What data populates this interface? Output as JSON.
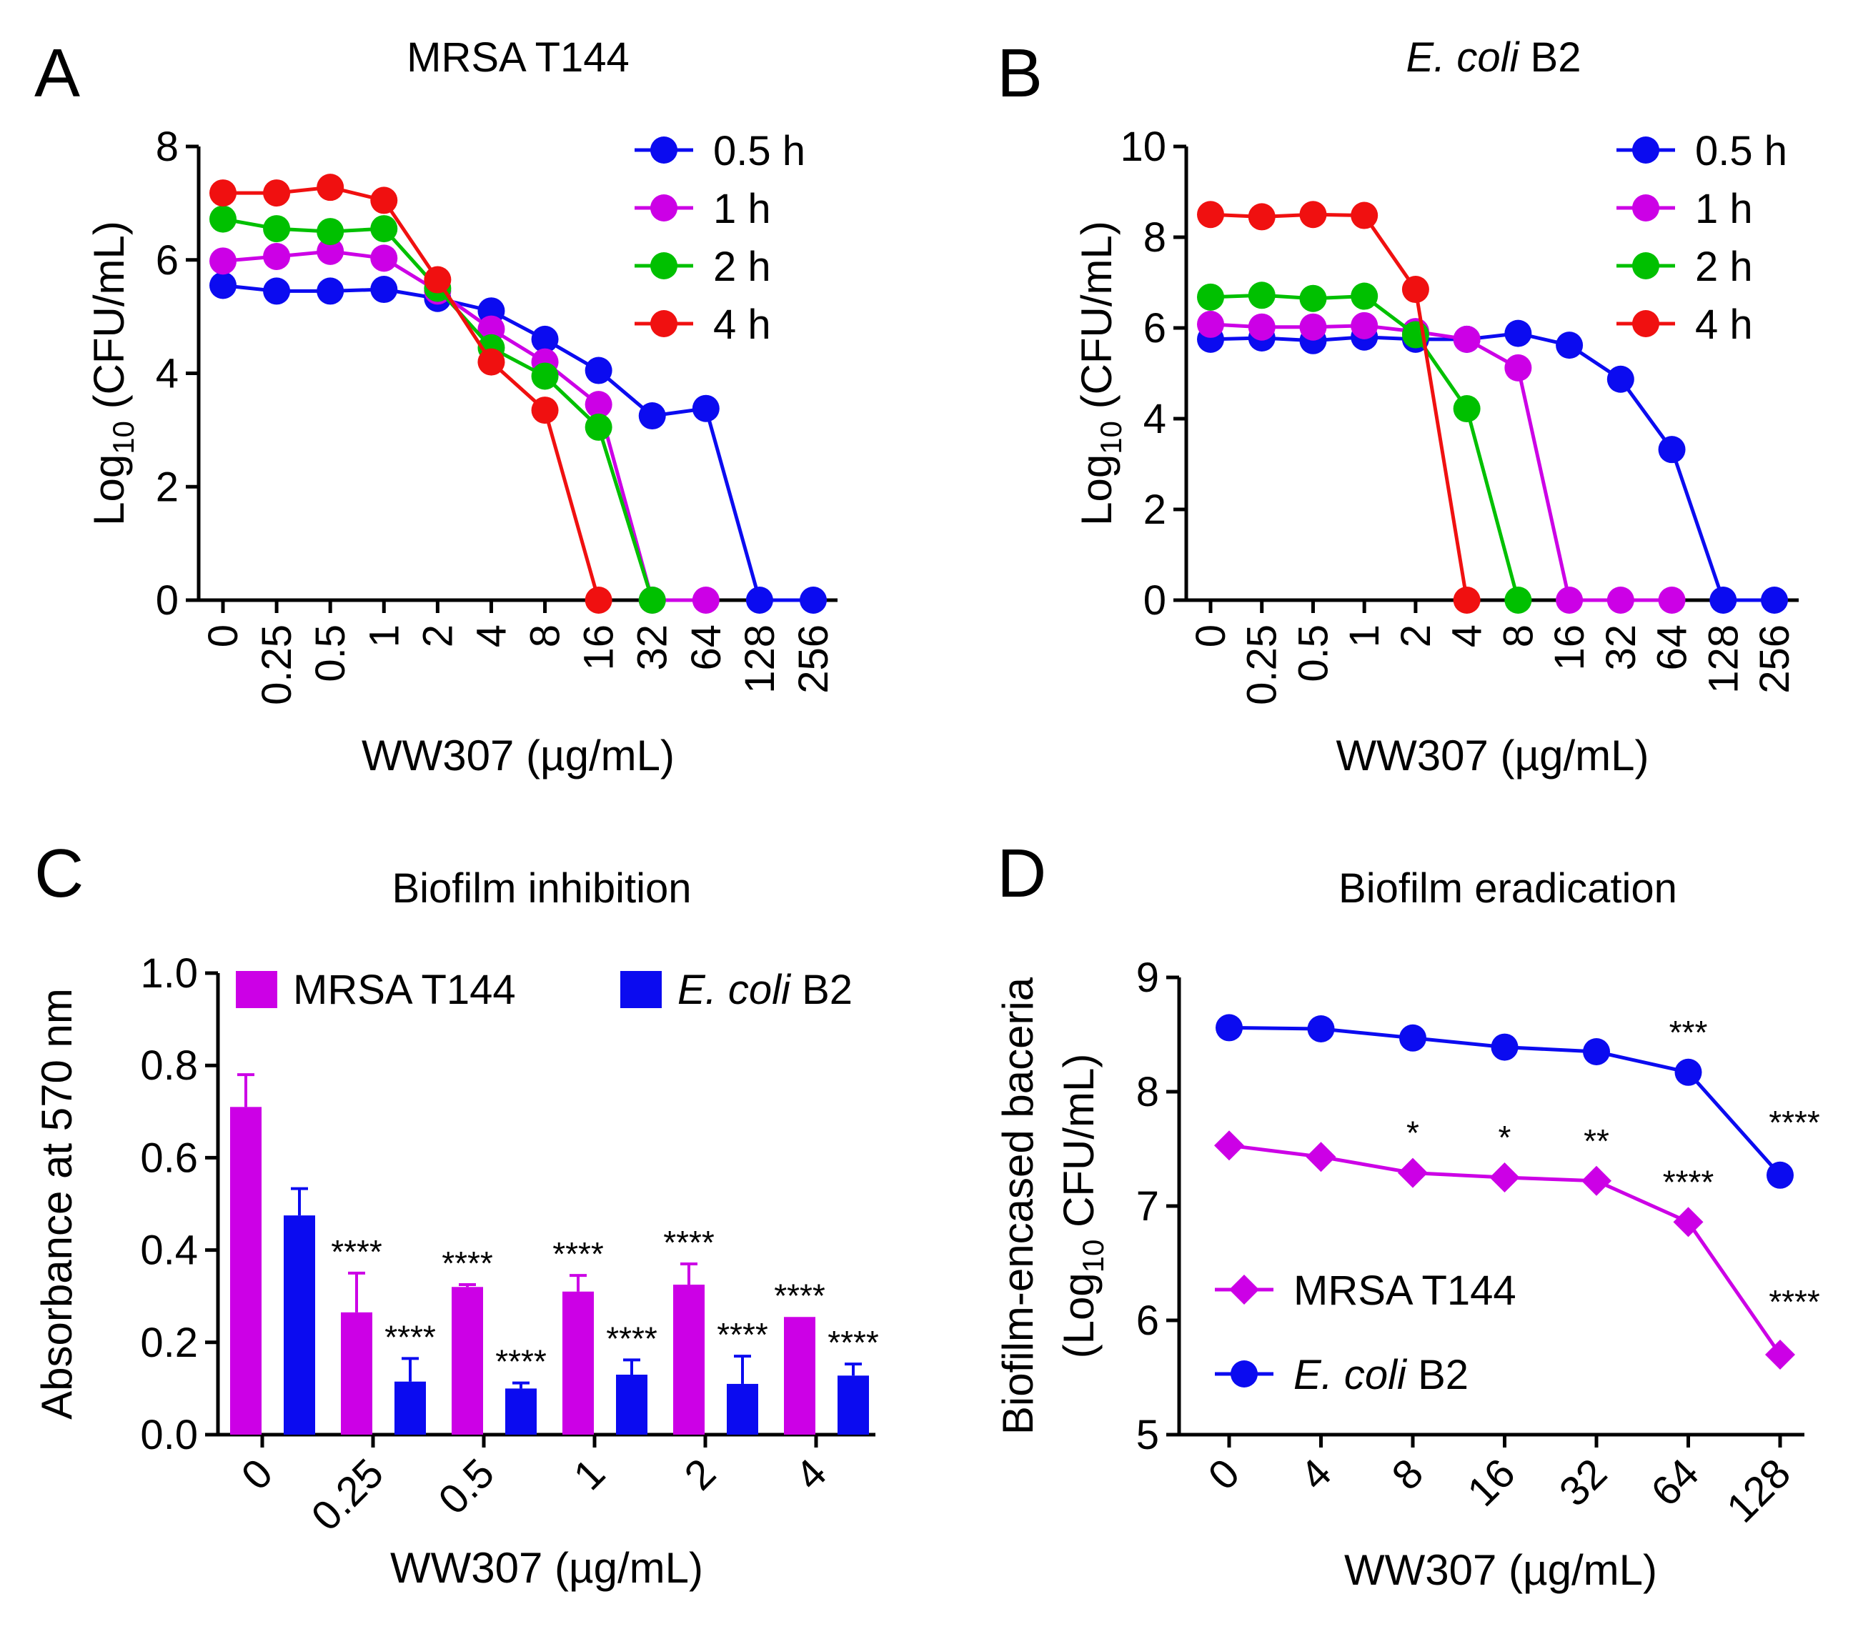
{
  "chart_data": [
    {
      "panel": "A",
      "type": "line",
      "title": "MRSA T144",
      "xlabel": "WW307 (µg/mL)",
      "ylabel_main": "Log",
      "ylabel_sub": "10",
      "ylabel_rest": " (CFU/mL)",
      "categories": [
        "0",
        "0.25",
        "0.5",
        "1",
        "2",
        "4",
        "8",
        "16",
        "32",
        "64",
        "128",
        "256"
      ],
      "yticks": [
        "0",
        "2",
        "4",
        "6",
        "8"
      ],
      "ylim": [
        0,
        8
      ],
      "legend_position": "top-right",
      "series": [
        {
          "name": "0.5 h",
          "color": "#0b0bf0",
          "marker": "circle",
          "values": [
            5.55,
            5.45,
            5.45,
            5.48,
            5.32,
            5.1,
            4.6,
            4.05,
            3.25,
            3.38,
            0,
            0
          ]
        },
        {
          "name": "1 h",
          "color": "#cc00e6",
          "marker": "circle",
          "values": [
            5.98,
            6.06,
            6.15,
            6.03,
            5.45,
            4.78,
            4.2,
            3.45,
            0,
            0,
            null,
            null
          ]
        },
        {
          "name": "2 h",
          "color": "#00c000",
          "marker": "circle",
          "values": [
            6.72,
            6.55,
            6.5,
            6.55,
            5.5,
            4.45,
            3.95,
            3.05,
            0,
            null,
            null,
            null
          ]
        },
        {
          "name": "4 h",
          "color": "#f01010",
          "marker": "circle",
          "values": [
            7.18,
            7.18,
            7.28,
            7.05,
            5.65,
            4.2,
            3.35,
            0,
            null,
            null,
            null,
            null
          ]
        }
      ]
    },
    {
      "panel": "B",
      "type": "line",
      "title_italic": "E. coli",
      "title_rest": " B2",
      "xlabel": "WW307 (µg/mL)",
      "ylabel_main": "Log",
      "ylabel_sub": "10",
      "ylabel_rest": " (CFU/mL)",
      "categories": [
        "0",
        "0.25",
        "0.5",
        "1",
        "2",
        "4",
        "8",
        "16",
        "32",
        "64",
        "128",
        "256"
      ],
      "yticks": [
        "0",
        "2",
        "4",
        "6",
        "8",
        "10"
      ],
      "ylim": [
        0,
        10
      ],
      "legend_position": "top-right",
      "series": [
        {
          "name": "0.5 h",
          "color": "#0b0bf0",
          "marker": "circle",
          "values": [
            5.75,
            5.78,
            5.72,
            5.8,
            5.75,
            5.75,
            5.88,
            5.62,
            4.87,
            3.32,
            0,
            0
          ]
        },
        {
          "name": "1 h",
          "color": "#cc00e6",
          "marker": "circle",
          "values": [
            6.08,
            6.02,
            6.02,
            6.05,
            5.92,
            5.75,
            5.12,
            0,
            0,
            0,
            null,
            null
          ]
        },
        {
          "name": "2 h",
          "color": "#00c000",
          "marker": "circle",
          "values": [
            6.68,
            6.72,
            6.65,
            6.7,
            5.85,
            4.22,
            0,
            null,
            null,
            null,
            null,
            null
          ]
        },
        {
          "name": "4 h",
          "color": "#f01010",
          "marker": "circle",
          "values": [
            8.5,
            8.45,
            8.5,
            8.48,
            6.85,
            0,
            null,
            null,
            null,
            null,
            null,
            null
          ]
        }
      ]
    },
    {
      "panel": "C",
      "type": "bar",
      "title": "Biofilm inhibition",
      "xlabel": "WW307 (µg/mL)",
      "ylabel": "Absorbance at 570 nm",
      "categories": [
        "0",
        "0.25",
        "0.5",
        "1",
        "2",
        "4"
      ],
      "yticks": [
        "0.0",
        "0.2",
        "0.4",
        "0.6",
        "0.8",
        "1.0"
      ],
      "ylim": [
        0,
        1.0
      ],
      "legend_position": "top",
      "series": [
        {
          "name": "MRSA T144",
          "color": "#cc00e6",
          "values": [
            0.71,
            0.265,
            0.32,
            0.31,
            0.325,
            0.255
          ],
          "errors": [
            0.07,
            0.085,
            0.005,
            0.035,
            0.045,
            0.0
          ],
          "sig": [
            "",
            "****",
            "****",
            "****",
            "****",
            "****"
          ]
        },
        {
          "name_italic": "E. coli",
          "name_rest": " B2",
          "color": "#0b0bf0",
          "values": [
            0.475,
            0.115,
            0.1,
            0.13,
            0.11,
            0.128
          ],
          "errors": [
            0.058,
            0.05,
            0.012,
            0.032,
            0.06,
            0.025
          ],
          "sig": [
            "",
            "****",
            "****",
            "****",
            "****",
            "****"
          ]
        }
      ]
    },
    {
      "panel": "D",
      "type": "line",
      "title": "Biofilm eradication",
      "xlabel": "WW307 (µg/mL)",
      "ylabel_line1": "Biofilm-encased baceria",
      "ylabel_line2_pre": "(Log",
      "ylabel_line2_sub": "10",
      "ylabel_line2_post": " CFU/mL)",
      "categories": [
        "0",
        "4",
        "8",
        "16",
        "32",
        "64",
        "128"
      ],
      "yticks": [
        "5",
        "6",
        "7",
        "8",
        "9"
      ],
      "ylim": [
        5,
        9
      ],
      "legend_position": "bottom-left",
      "series": [
        {
          "name": "MRSA T144",
          "color": "#cc00e6",
          "marker": "diamond",
          "values": [
            7.53,
            7.43,
            7.29,
            7.25,
            7.22,
            6.86,
            5.7
          ],
          "sig": [
            "",
            "",
            "*",
            "*",
            "**",
            "****",
            "****"
          ]
        },
        {
          "name_italic": "E. coli",
          "name_rest": " B2",
          "color": "#0b0bf0",
          "marker": "circle",
          "values": [
            8.56,
            8.55,
            8.47,
            8.39,
            8.35,
            8.17,
            7.27
          ],
          "sig": [
            "",
            "",
            "",
            "",
            "",
            "***",
            "****"
          ]
        }
      ]
    }
  ],
  "panel_letters": [
    "A",
    "B",
    "C",
    "D"
  ]
}
